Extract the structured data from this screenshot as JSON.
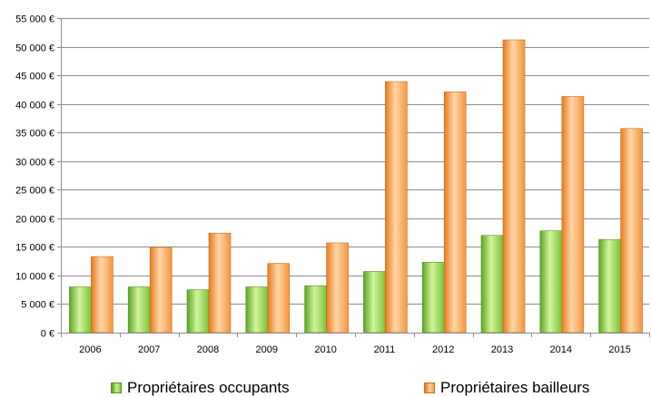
{
  "chart_data": {
    "type": "bar",
    "categories": [
      "2006",
      "2007",
      "2008",
      "2009",
      "2010",
      "2011",
      "2012",
      "2013",
      "2014",
      "2015"
    ],
    "series": [
      {
        "name": "Propriétaires occupants",
        "color": "#7cc63a",
        "values": [
          8000,
          8000,
          7500,
          8000,
          8200,
          10700,
          12300,
          17000,
          17800,
          16300
        ]
      },
      {
        "name": "Propriétaires bailleurs",
        "color": "#f7923a",
        "values": [
          13300,
          14900,
          17400,
          12100,
          15700,
          43900,
          42100,
          51200,
          41300,
          35700
        ]
      }
    ],
    "ylim": [
      0,
      55000
    ],
    "yticks": [
      "0 €",
      "5 000 €",
      "10 000 €",
      "15 000 €",
      "20 000 €",
      "25 000 €",
      "30 000 €",
      "35 000 €",
      "40 000 €",
      "45 000 €",
      "50 000 €",
      "55 000 €"
    ],
    "ytick_values": [
      0,
      5000,
      10000,
      15000,
      20000,
      25000,
      30000,
      35000,
      40000,
      45000,
      50000,
      55000
    ],
    "grid": true,
    "legend_position": "bottom"
  },
  "legend": {
    "item1": "Propriétaires occupants",
    "item2": "Propriétaires bailleurs"
  }
}
